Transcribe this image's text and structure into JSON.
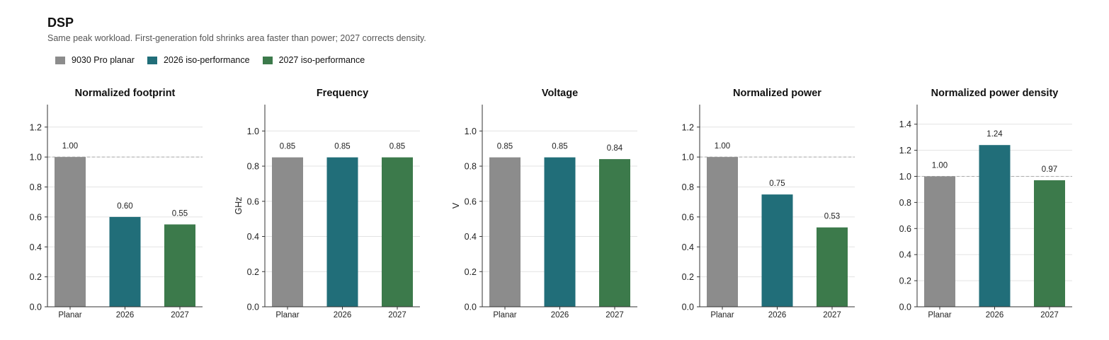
{
  "page": {
    "title": "DSP",
    "subtitle": "Same peak workload. First-generation fold shrinks area faster than power; 2027 corrects density."
  },
  "legend": [
    {
      "label": "9030 Pro planar",
      "color": "#8c8c8c"
    },
    {
      "label": "2026 iso-performance",
      "color": "#216e79"
    },
    {
      "label": "2027 iso-performance",
      "color": "#3c7a4b"
    }
  ],
  "chart_data": [
    {
      "type": "bar",
      "title": "Normalized footprint",
      "ylabel": "",
      "categories": [
        "Planar",
        "2026",
        "2027"
      ],
      "values": [
        1.0,
        0.6,
        0.55
      ],
      "value_labels": [
        "1.00",
        "0.60",
        "0.55"
      ],
      "ylim": [
        0,
        1.35
      ],
      "yticks": [
        0.0,
        0.2,
        0.4,
        0.6,
        0.8,
        1.0,
        1.2
      ],
      "ytick_labels": [
        "0.0",
        "0.2",
        "0.4",
        "0.6",
        "0.8",
        "1.0",
        "1.2"
      ],
      "reference_line": 1.0,
      "grid": true
    },
    {
      "type": "bar",
      "title": "Frequency",
      "ylabel": "GHz",
      "categories": [
        "Planar",
        "2026",
        "2027"
      ],
      "values": [
        0.85,
        0.85,
        0.85
      ],
      "value_labels": [
        "0.85",
        "0.85",
        "0.85"
      ],
      "ylim": [
        0,
        1.15
      ],
      "yticks": [
        0.0,
        0.2,
        0.4,
        0.6,
        0.8,
        1.0
      ],
      "ytick_labels": [
        "0.0",
        "0.2",
        "0.4",
        "0.6",
        "0.8",
        "1.0"
      ],
      "grid": true
    },
    {
      "type": "bar",
      "title": "Voltage",
      "ylabel": "V",
      "categories": [
        "Planar",
        "2026",
        "2027"
      ],
      "values": [
        0.85,
        0.85,
        0.84
      ],
      "value_labels": [
        "0.85",
        "0.85",
        "0.84"
      ],
      "ylim": [
        0,
        1.15
      ],
      "yticks": [
        0.0,
        0.2,
        0.4,
        0.6,
        0.8,
        1.0
      ],
      "ytick_labels": [
        "0.0",
        "0.2",
        "0.4",
        "0.6",
        "0.8",
        "1.0"
      ],
      "grid": true
    },
    {
      "type": "bar",
      "title": "Normalized power",
      "ylabel": "",
      "categories": [
        "Planar",
        "2026",
        "2027"
      ],
      "values": [
        1.0,
        0.75,
        0.53
      ],
      "value_labels": [
        "1.00",
        "0.75",
        "0.53"
      ],
      "ylim": [
        0,
        1.35
      ],
      "yticks": [
        0.0,
        0.2,
        0.4,
        0.6,
        0.8,
        1.0,
        1.2
      ],
      "ytick_labels": [
        "0.0",
        "0.2",
        "0.4",
        "0.6",
        "0.8",
        "1.0",
        "1.2"
      ],
      "reference_line": 1.0,
      "grid": true
    },
    {
      "type": "bar",
      "title": "Normalized power density",
      "ylabel": "",
      "categories": [
        "Planar",
        "2026",
        "2027"
      ],
      "values": [
        1.0,
        1.24,
        0.97
      ],
      "value_labels": [
        "1.00",
        "1.24",
        "0.97"
      ],
      "ylim": [
        0,
        1.55
      ],
      "yticks": [
        0.0,
        0.2,
        0.4,
        0.6,
        0.8,
        1.0,
        1.2,
        1.4
      ],
      "ytick_labels": [
        "0.0",
        "0.2",
        "0.4",
        "0.6",
        "0.8",
        "1.0",
        "1.2",
        "1.4"
      ],
      "reference_line": 1.0,
      "grid": true
    }
  ]
}
